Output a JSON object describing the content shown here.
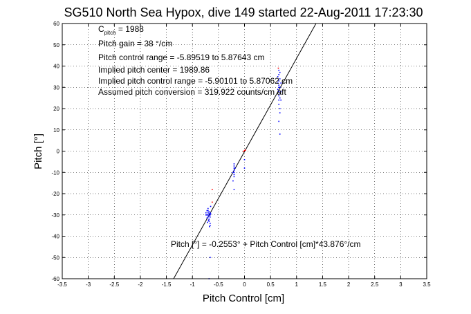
{
  "chart_data": {
    "type": "scatter",
    "title": "SG510 North Sea Hypox, dive 149 started 22-Aug-2011 17:23:30",
    "xlabel": "Pitch Control [cm]",
    "ylabel": "Pitch [°]",
    "xlim": [
      -3.5,
      3.5
    ],
    "ylim": [
      -60,
      60
    ],
    "xticks": [
      -3.5,
      -3,
      -2.5,
      -2,
      -1.5,
      -1,
      -0.5,
      0,
      0.5,
      1,
      1.5,
      2,
      2.5,
      3,
      3.5
    ],
    "xtick_labels": [
      "-3.5",
      "-3",
      "-2.5",
      "-2",
      "-1.5",
      "-1",
      "-0.5",
      "0",
      "0.5",
      "1",
      "1.5",
      "2",
      "2.5",
      "3",
      "3.5"
    ],
    "yticks": [
      -60,
      -50,
      -40,
      -30,
      -20,
      -10,
      0,
      10,
      20,
      30,
      40,
      50,
      60
    ],
    "ytick_labels": [
      "-60",
      "-50",
      "-40",
      "-30",
      "-20",
      "-10",
      "0",
      "10",
      "20",
      "30",
      "40",
      "50",
      "60"
    ],
    "grid": true,
    "fit_line": {
      "intercept": -0.2553,
      "slope": 43.876,
      "color": "#000000"
    },
    "annotations": {
      "c_pitch_main": "C",
      "c_pitch_sub": "pitch",
      "c_pitch_value": " = 1988",
      "pitch_gain": "Pitch gain = 38 °/cm",
      "control_range": "Pitch control range = -5.89519 to 5.87643 cm",
      "implied_center": "Implied pitch center = 1989.86",
      "implied_range": "Implied pitch control range = -5.90101 to 5.87062 cm",
      "conversion": "Assumed pitch conversion = 319.922 counts/cm aft",
      "equation": "Pitch [°] = -0.2553° + Pitch Control [cm]*43.876°/cm"
    },
    "series": [
      {
        "color": "#0000ff",
        "points": [
          [
            -0.7,
            -27
          ],
          [
            -0.7,
            -28
          ],
          [
            -0.7,
            -29
          ],
          [
            -0.7,
            -30
          ],
          [
            -0.7,
            -31
          ],
          [
            -0.68,
            -28.5
          ],
          [
            -0.68,
            -29.5
          ],
          [
            -0.68,
            -30.5
          ],
          [
            -0.68,
            -32
          ],
          [
            -0.68,
            -33
          ],
          [
            -0.66,
            -29
          ],
          [
            -0.66,
            -30
          ],
          [
            -0.66,
            -31
          ],
          [
            -0.66,
            -34
          ],
          [
            -0.66,
            -35
          ],
          [
            -0.72,
            -28
          ],
          [
            -0.72,
            -30
          ],
          [
            -0.72,
            -31.5
          ],
          [
            -0.74,
            -29
          ],
          [
            -0.74,
            -30
          ],
          [
            -0.65,
            -29.5
          ],
          [
            -0.65,
            -26
          ],
          [
            -0.67,
            -35.5
          ],
          [
            -0.69,
            -32.5
          ],
          [
            -0.71,
            -33.5
          ],
          [
            -0.66,
            -50
          ],
          [
            -0.68,
            -60
          ],
          [
            -0.2,
            -6
          ],
          [
            -0.2,
            -7
          ],
          [
            -0.2,
            -8
          ],
          [
            -0.2,
            -9
          ],
          [
            -0.2,
            -10
          ],
          [
            -0.2,
            -11
          ],
          [
            -0.2,
            -12
          ],
          [
            -0.22,
            -10
          ],
          [
            -0.18,
            -8
          ],
          [
            -0.2,
            -18
          ],
          [
            -0.22,
            -14
          ],
          [
            0.0,
            -4
          ],
          [
            0.0,
            -8
          ],
          [
            0.66,
            38
          ],
          [
            0.66,
            36
          ],
          [
            0.66,
            33
          ],
          [
            0.66,
            31
          ],
          [
            0.66,
            30
          ],
          [
            0.66,
            28
          ],
          [
            0.66,
            26
          ],
          [
            0.66,
            24
          ],
          [
            0.66,
            22
          ],
          [
            0.68,
            37
          ],
          [
            0.68,
            34
          ],
          [
            0.68,
            30
          ],
          [
            0.68,
            27
          ],
          [
            0.68,
            25
          ],
          [
            0.68,
            20
          ],
          [
            0.68,
            18
          ],
          [
            0.64,
            35
          ],
          [
            0.64,
            32
          ],
          [
            0.64,
            29
          ],
          [
            0.66,
            14
          ],
          [
            0.68,
            8
          ],
          [
            0.7,
            32
          ],
          [
            0.7,
            28
          ],
          [
            0.7,
            24
          ]
        ]
      },
      {
        "color": "#ff0000",
        "points": [
          [
            -0.62,
            -18
          ],
          [
            -0.62,
            -24
          ],
          [
            0.0,
            0.3
          ],
          [
            0.02,
            0.5
          ],
          [
            -0.02,
            -0.2
          ],
          [
            0.65,
            39
          ]
        ]
      }
    ]
  }
}
